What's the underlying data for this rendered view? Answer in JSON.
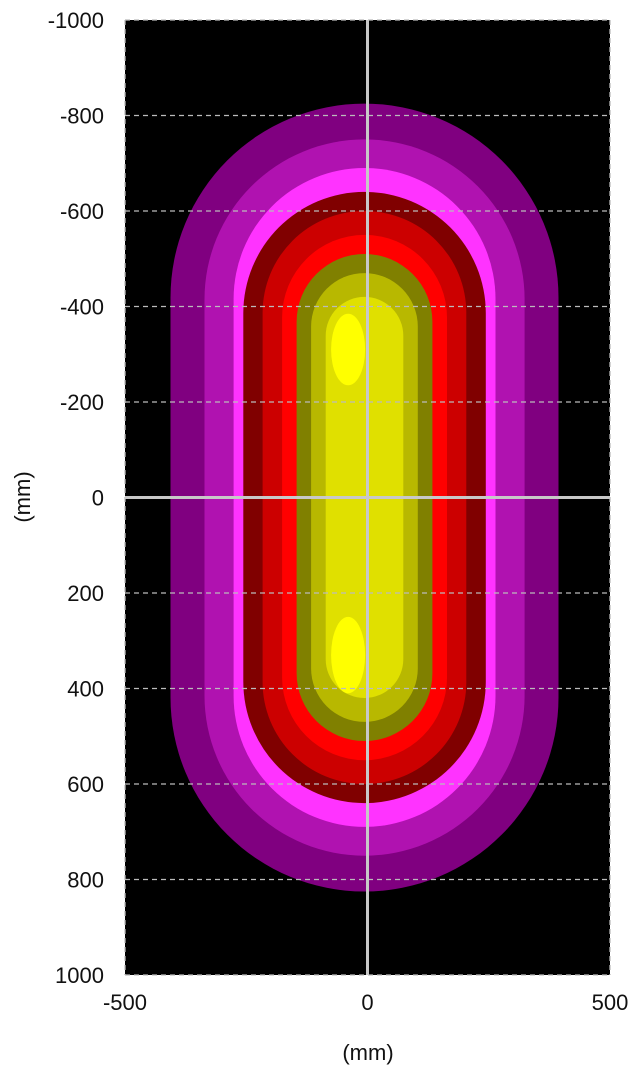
{
  "chart_data": {
    "type": "heatmap",
    "title": "",
    "xlabel": "(mm)",
    "ylabel": "(mm)",
    "xlim": [
      -500,
      500
    ],
    "ylim": [
      -1000,
      1000
    ],
    "y_inverted": true,
    "grid": true,
    "x_ticks": [
      -500,
      0,
      500
    ],
    "y_ticks": [
      -1000,
      -800,
      -600,
      -400,
      -200,
      0,
      200,
      400,
      600,
      800,
      1000
    ],
    "background_color": "#000000",
    "crosshair_color": "#c8c8c8",
    "contours": [
      {
        "color": "#800080",
        "x_half_width": 400,
        "y_extent": [
          -825,
          825
        ]
      },
      {
        "color": "#b012b0",
        "x_half_width": 330,
        "y_extent": [
          -750,
          750
        ]
      },
      {
        "color": "#ff33ff",
        "x_half_width": 270,
        "y_extent": [
          -690,
          690
        ]
      },
      {
        "color": "#800000",
        "x_half_width": 250,
        "y_extent": [
          -640,
          640
        ]
      },
      {
        "color": "#cc0000",
        "x_half_width": 210,
        "y_extent": [
          -600,
          600
        ]
      },
      {
        "color": "#ff0000",
        "x_half_width": 170,
        "y_extent": [
          -550,
          550
        ]
      },
      {
        "color": "#808000",
        "x_half_width": 140,
        "y_extent": [
          -510,
          510
        ]
      },
      {
        "color": "#b8b800",
        "x_half_width": 110,
        "y_extent": [
          -470,
          470
        ]
      },
      {
        "color": "#e0e000",
        "x_half_width": 80,
        "y_extent": [
          -420,
          420
        ]
      }
    ],
    "peaks": [
      {
        "color": "#ffff00",
        "x": -40,
        "y": -310,
        "rx": 35,
        "ry": 75
      },
      {
        "color": "#ffff00",
        "x": -40,
        "y": 330,
        "rx": 35,
        "ry": 80
      }
    ]
  }
}
